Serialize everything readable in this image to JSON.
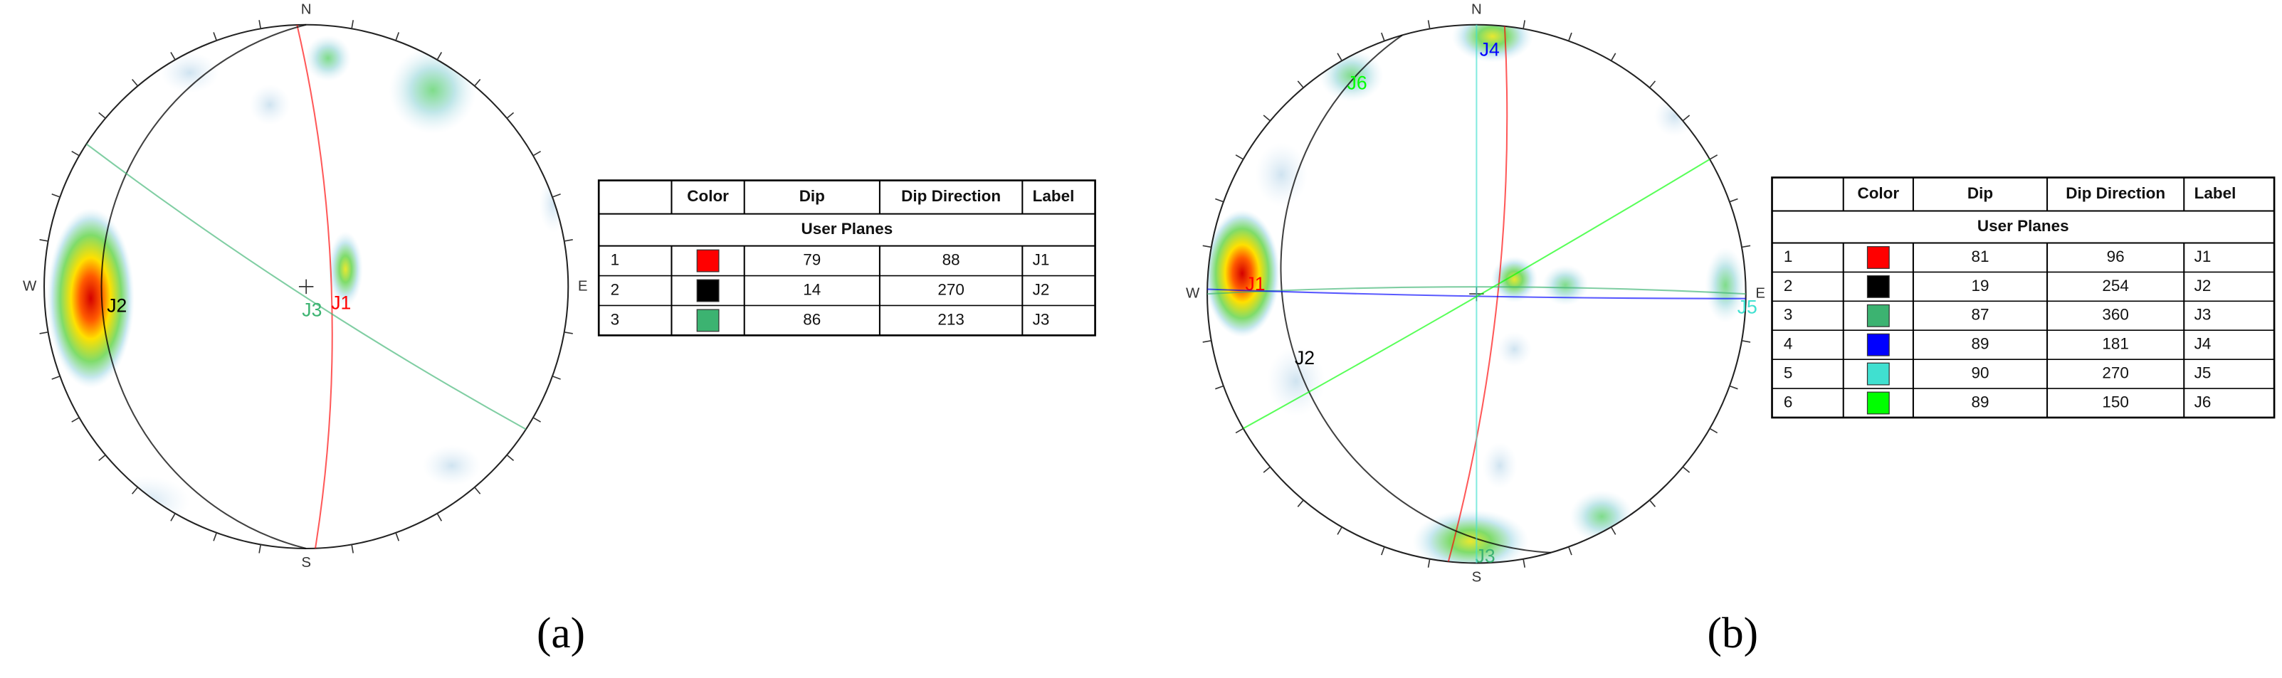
{
  "panels": [
    {
      "label": "(a)",
      "compass": [
        "N",
        "E",
        "S",
        "W"
      ],
      "table": {
        "headers": [
          "Color",
          "Dip",
          "Dip Direction",
          "Label"
        ],
        "group": "User Planes",
        "rows": [
          {
            "id": 1,
            "color": "#ff0000",
            "dip": 79,
            "dip_direction": 88,
            "label": "J1"
          },
          {
            "id": 2,
            "color": "#000000",
            "dip": 14,
            "dip_direction": 270,
            "label": "J2"
          },
          {
            "id": 3,
            "color": "#3cb371",
            "dip": 86,
            "dip_direction": 213,
            "label": "J3"
          }
        ]
      }
    },
    {
      "label": "(b)",
      "compass": [
        "N",
        "E",
        "S",
        "W"
      ],
      "table": {
        "headers": [
          "Color",
          "Dip",
          "Dip Direction",
          "Label"
        ],
        "group": "User Planes",
        "rows": [
          {
            "id": 1,
            "color": "#ff0000",
            "dip": 81,
            "dip_direction": 96,
            "label": "J1"
          },
          {
            "id": 2,
            "color": "#000000",
            "dip": 19,
            "dip_direction": 254,
            "label": "J2"
          },
          {
            "id": 3,
            "color": "#3cb371",
            "dip": 87,
            "dip_direction": 360,
            "label": "J3"
          },
          {
            "id": 4,
            "color": "#0000ff",
            "dip": 89,
            "dip_direction": 181,
            "label": "J4"
          },
          {
            "id": 5,
            "color": "#40e0d0",
            "dip": 90,
            "dip_direction": 270,
            "label": "J5"
          },
          {
            "id": 6,
            "color": "#00ff00",
            "dip": 89,
            "dip_direction": 150,
            "label": "J6"
          }
        ]
      }
    }
  ]
}
